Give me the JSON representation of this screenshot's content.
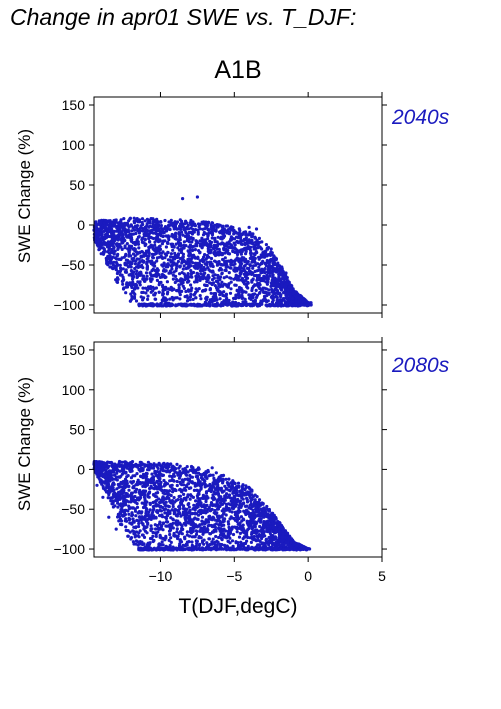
{
  "title": "Change in apr01 SWE vs. T_DJF:",
  "scenario": "A1B",
  "colors": {
    "points": "#1a1abf",
    "axes": "#000000",
    "period_label": "#1a1abf"
  },
  "chart_data": [
    {
      "type": "scatter",
      "panel_label": "2040s",
      "ylabel": "SWE Change (%)",
      "xlabel": "",
      "xlim": [
        -14.5,
        5
      ],
      "ylim": [
        -110,
        160
      ],
      "yticks": [
        -100,
        -50,
        0,
        50,
        100,
        150
      ],
      "xticks": [
        -10,
        -5,
        0,
        5
      ],
      "xtick_labels_shown": false,
      "grid": false,
      "envelope": {
        "x_min": -14.5,
        "x_max": 0.2,
        "upper": [
          [
            -14.5,
            5
          ],
          [
            -12,
            9
          ],
          [
            -10,
            8
          ],
          [
            -8,
            6
          ],
          [
            -6,
            2
          ],
          [
            -4,
            -8
          ],
          [
            -3,
            -20
          ],
          [
            -2,
            -45
          ],
          [
            -1,
            -80
          ],
          [
            0,
            -97
          ]
        ],
        "floor": -100,
        "lower_edge": [
          [
            -14.5,
            -20
          ],
          [
            -13,
            -70
          ],
          [
            -12,
            -98
          ],
          [
            -11,
            -100
          ]
        ]
      },
      "outliers": [
        [
          -8.5,
          33
        ],
        [
          -7.5,
          35
        ],
        [
          -13.5,
          4
        ],
        [
          -14.2,
          -18
        ],
        [
          -13.8,
          -30
        ],
        [
          -13,
          -55
        ],
        [
          -12.5,
          -80
        ],
        [
          -4,
          -3
        ],
        [
          -3.5,
          -5
        ],
        [
          -2.5,
          -30
        ],
        [
          -1.5,
          -60
        ],
        [
          0.2,
          -100
        ],
        [
          -0.8,
          -90
        ]
      ]
    },
    {
      "type": "scatter",
      "panel_label": "2080s",
      "ylabel": "SWE Change (%)",
      "xlabel": "T(DJF,degC)",
      "xlim": [
        -14.5,
        5
      ],
      "ylim": [
        -110,
        160
      ],
      "yticks": [
        -100,
        -50,
        0,
        50,
        100,
        150
      ],
      "xticks": [
        -10,
        -5,
        0,
        5
      ],
      "xtick_labels": [
        "−10",
        "−5",
        "0",
        "5"
      ],
      "grid": false,
      "envelope": {
        "x_min": -14.5,
        "x_max": 0.2,
        "upper": [
          [
            -14.5,
            10
          ],
          [
            -12,
            10
          ],
          [
            -10,
            9
          ],
          [
            -8,
            5
          ],
          [
            -6,
            -5
          ],
          [
            -4,
            -22
          ],
          [
            -3,
            -40
          ],
          [
            -2,
            -65
          ],
          [
            -1,
            -90
          ],
          [
            0,
            -100
          ]
        ],
        "floor": -100,
        "lower_edge": [
          [
            -14.5,
            0
          ],
          [
            -13.5,
            -40
          ],
          [
            -12.5,
            -80
          ],
          [
            -11.5,
            -100
          ]
        ]
      },
      "outliers": [
        [
          -14.3,
          -20
        ],
        [
          -13.9,
          -35
        ],
        [
          -13.5,
          -60
        ],
        [
          -13,
          -75
        ],
        [
          -3,
          -55
        ],
        [
          -2,
          -75
        ],
        [
          -0.3,
          -100
        ],
        [
          0.1,
          -100
        ],
        [
          -6.5,
          2
        ]
      ]
    }
  ]
}
